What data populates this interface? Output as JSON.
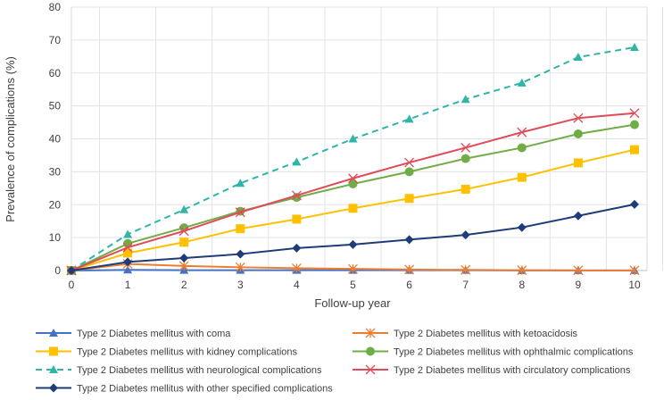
{
  "chart_data": {
    "type": "line",
    "title": "",
    "xlabel": "Follow-up year",
    "ylabel": "Prevalence of complications (%)",
    "xlim": [
      0,
      10
    ],
    "ylim": [
      0,
      80
    ],
    "x": [
      0,
      1,
      2,
      3,
      4,
      5,
      6,
      7,
      8,
      9,
      10
    ],
    "x_tick_labels": [
      "0",
      "1",
      "2",
      "3",
      "4",
      "5",
      "6",
      "7",
      "8",
      "9",
      "10"
    ],
    "y_tick_labels": [
      "0",
      "10",
      "20",
      "30",
      "40",
      "50",
      "60",
      "70",
      "80"
    ],
    "y_ticks": [
      0,
      10,
      20,
      30,
      40,
      50,
      60,
      70,
      80
    ],
    "grid": true,
    "legend_position": "bottom",
    "series": [
      {
        "name": "Type 2 Diabetes mellitus with coma",
        "color": "#4472C4",
        "marker": "triangle",
        "dash": false,
        "values": [
          0,
          0.2,
          0.1,
          0.1,
          0.1,
          0.1,
          0.1,
          0.1,
          0.05,
          0.05,
          0.05
        ]
      },
      {
        "name": "Type 2 Diabetes mellitus with ketoacidosis",
        "color": "#ED7D31",
        "marker": "star",
        "dash": false,
        "values": [
          0,
          2.0,
          1.4,
          1.0,
          0.7,
          0.5,
          0.3,
          0.2,
          0.1,
          0.05,
          0.05
        ]
      },
      {
        "name": "Type 2 Diabetes mellitus with kidney complications",
        "color": "#FFC000",
        "marker": "square",
        "dash": false,
        "values": [
          0,
          5.3,
          8.6,
          12.7,
          15.6,
          18.9,
          21.9,
          24.7,
          28.3,
          32.7,
          36.7
        ]
      },
      {
        "name": "Type 2 Diabetes mellitus with ophthalmic complications",
        "color": "#70AD47",
        "marker": "circle",
        "dash": false,
        "values": [
          0,
          8.2,
          13.0,
          18.0,
          22.2,
          26.3,
          30.0,
          34.0,
          37.3,
          41.5,
          44.3
        ]
      },
      {
        "name": "Type 2 Diabetes mellitus with neurological complications",
        "color": "#2EB5A8",
        "marker": "triangle",
        "dash": true,
        "values": [
          0,
          11.0,
          18.5,
          26.5,
          33.0,
          40.0,
          46.0,
          52.0,
          57.0,
          64.8,
          67.8
        ]
      },
      {
        "name": "Type 2 Diabetes mellitus with circulatory complications",
        "color": "#E04B5A",
        "marker": "x",
        "dash": false,
        "values": [
          0,
          7.0,
          12.0,
          17.7,
          22.8,
          28.0,
          32.8,
          37.3,
          42.0,
          46.3,
          47.8
        ]
      },
      {
        "name": "Type 2 Diabetes mellitus with other specified complications",
        "color": "#1F3C7A",
        "marker": "diamond",
        "dash": false,
        "values": [
          0,
          2.6,
          3.8,
          5.0,
          6.8,
          7.9,
          9.4,
          10.8,
          13.1,
          16.6,
          20.1
        ]
      }
    ]
  }
}
